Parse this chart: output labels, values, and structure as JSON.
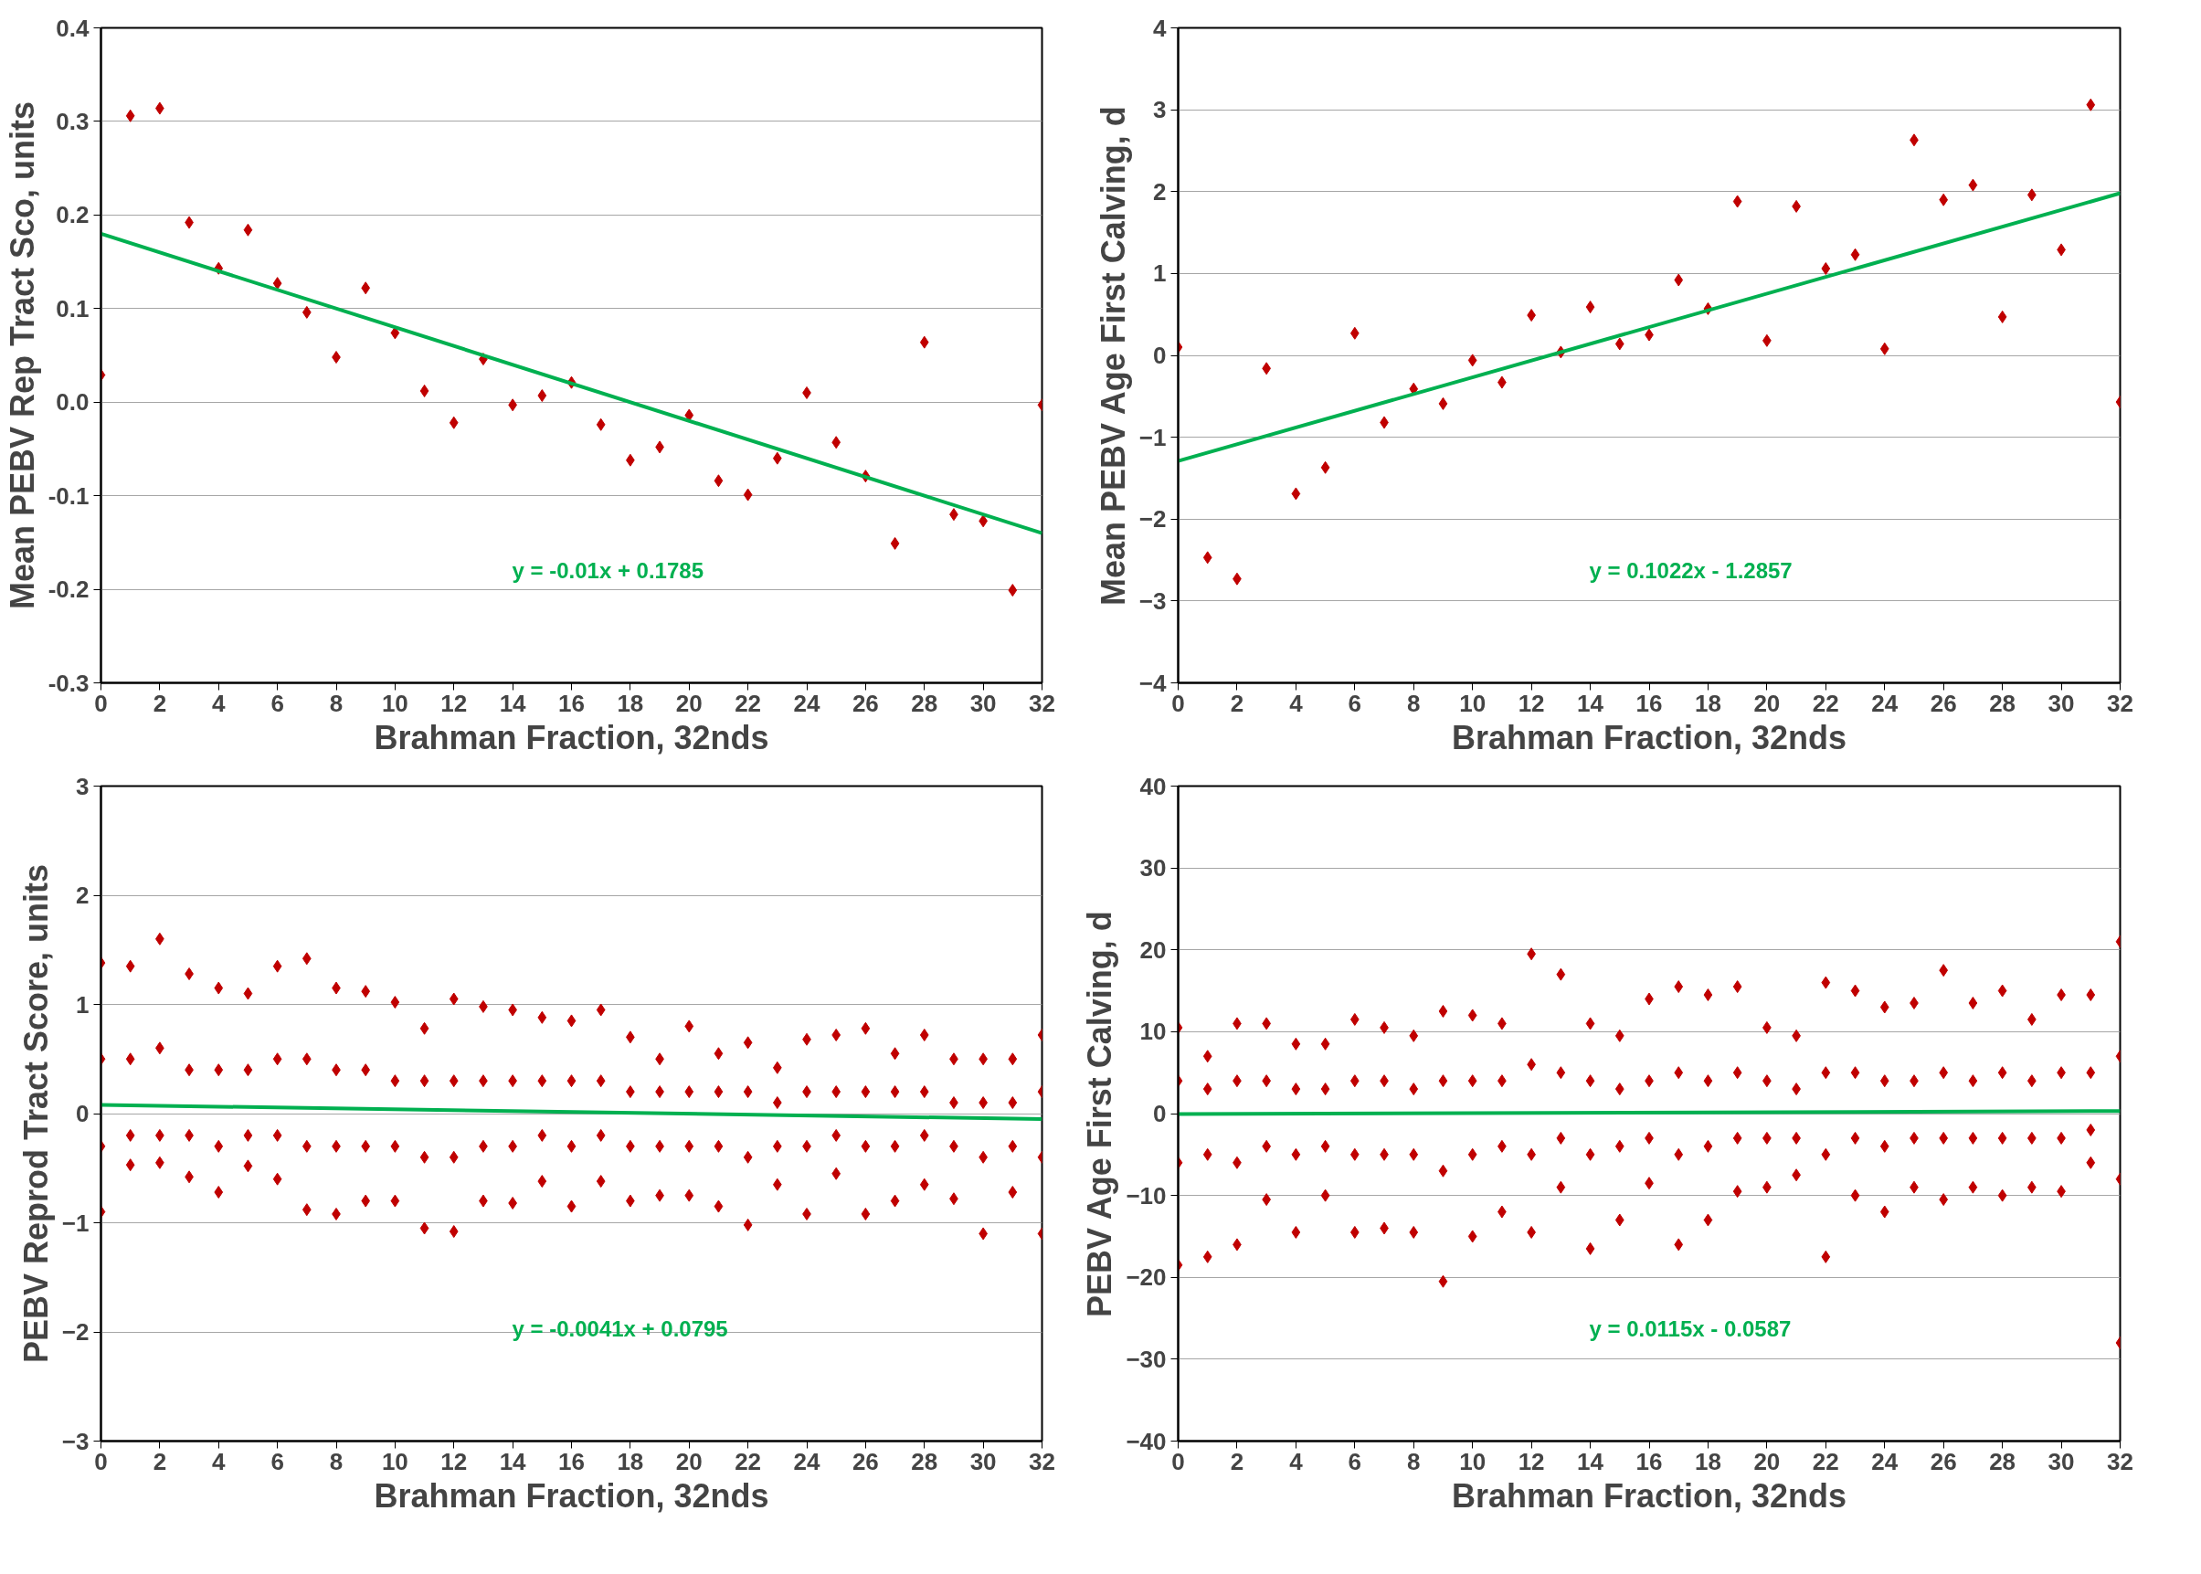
{
  "chart_data": [
    {
      "type": "scatter",
      "xlabel": "Brahman Fraction, 32nds",
      "ylabel": "Mean PEBV Rep Tract Sco, units",
      "xlim": [
        0,
        32
      ],
      "xticks": [
        0,
        2,
        4,
        6,
        8,
        10,
        12,
        14,
        16,
        18,
        20,
        22,
        24,
        26,
        28,
        30,
        32
      ],
      "ylim": [
        -0.3,
        0.4
      ],
      "yticks": [
        {
          "value": -0.3,
          "label": "-0.3"
        },
        {
          "value": -0.2,
          "label": "-0.2"
        },
        {
          "value": -0.1,
          "label": "-0.1"
        },
        {
          "value": 0,
          "label": "0.0"
        },
        {
          "value": 0.1,
          "label": "0.1"
        },
        {
          "value": 0.2,
          "label": "0.2"
        },
        {
          "value": 0.3,
          "label": "0.3"
        },
        {
          "value": 0.4,
          "label": "0.4"
        }
      ],
      "grid": "y",
      "series": [
        {
          "marker": "diamond",
          "color": "#c00000",
          "x": [
            0,
            1,
            2,
            3,
            4,
            5,
            6,
            7,
            8,
            9,
            10,
            11,
            12,
            13,
            14,
            15,
            16,
            17,
            18,
            19,
            20,
            21,
            22,
            23,
            24,
            25,
            26,
            27,
            28,
            29,
            30,
            31,
            32
          ],
          "values": [
            0.029,
            0.306,
            0.314,
            0.192,
            0.143,
            0.184,
            0.127,
            0.096,
            0.048,
            0.122,
            0.074,
            0.012,
            -0.022,
            0.046,
            -0.003,
            0.007,
            0.021,
            -0.024,
            -0.062,
            -0.048,
            -0.014,
            -0.084,
            -0.099,
            -0.06,
            0.01,
            -0.043,
            -0.079,
            -0.151,
            0.064,
            -0.12,
            -0.127,
            -0.201,
            -0.003
          ]
        },
        {
          "type": "line",
          "color": "#00b050",
          "x": [
            0,
            32
          ],
          "values": [
            0.18,
            -0.14
          ]
        }
      ],
      "annotations": [
        "y = -0.01x + 0.1785"
      ]
    },
    {
      "type": "scatter",
      "xlabel": "Brahman Fraction, 32nds",
      "ylabel": "Mean PEBV Age First Calving, d",
      "xlim": [
        0,
        32
      ],
      "xticks": [
        0,
        2,
        4,
        6,
        8,
        10,
        12,
        14,
        16,
        18,
        20,
        22,
        24,
        26,
        28,
        30,
        32
      ],
      "ylim": [
        -4,
        4
      ],
      "yticks": [
        -4,
        -3,
        -2,
        -1,
        0,
        1,
        2,
        3,
        4
      ],
      "grid": "y",
      "series": [
        {
          "marker": "diamond",
          "color": "#c00000",
          "x": [
            0,
            1,
            2,
            3,
            4,
            5,
            6,
            7,
            8,
            9,
            10,
            11,
            12,
            13,
            14,
            15,
            16,
            17,
            18,
            19,
            20,
            21,
            22,
            23,
            24,
            25,
            26,
            27,
            28,
            29,
            30,
            31,
            32
          ],
          "values": [
            0.1,
            -2.47,
            -2.73,
            -0.16,
            -1.69,
            -1.37,
            0.27,
            -0.82,
            -0.41,
            -0.59,
            -0.06,
            -0.33,
            0.49,
            0.04,
            0.59,
            0.14,
            0.25,
            0.92,
            0.57,
            1.88,
            0.18,
            1.82,
            1.06,
            1.23,
            0.08,
            2.63,
            1.9,
            2.08,
            0.47,
            1.96,
            1.29,
            3.06,
            -0.57
          ]
        },
        {
          "type": "line",
          "color": "#00b050",
          "x": [
            0,
            32
          ],
          "values": [
            -1.29,
            1.98
          ]
        }
      ],
      "annotations": [
        "y = 0.1022x - 1.2857"
      ]
    },
    {
      "type": "scatter",
      "xlabel": "Brahman Fraction, 32nds",
      "ylabel": "PEBV Reprod Tract Score, units",
      "xlim": [
        0,
        32
      ],
      "xticks": [
        0,
        2,
        4,
        6,
        8,
        10,
        12,
        14,
        16,
        18,
        20,
        22,
        24,
        26,
        28,
        30,
        32
      ],
      "ylim": [
        -3,
        3
      ],
      "yticks": [
        -3,
        -2,
        -1,
        0,
        1,
        2,
        3
      ],
      "grid": "y",
      "series": [
        {
          "marker": "diamond",
          "color": "#c00000",
          "x": [
            0,
            0,
            0,
            0,
            1,
            1,
            1,
            1,
            2,
            2,
            2,
            2,
            3,
            3,
            3,
            3,
            4,
            4,
            4,
            4,
            5,
            5,
            5,
            5,
            6,
            6,
            6,
            6,
            7,
            7,
            7,
            7,
            8,
            8,
            8,
            8,
            9,
            9,
            9,
            9,
            10,
            10,
            10,
            10,
            11,
            11,
            11,
            11,
            12,
            12,
            12,
            12,
            13,
            13,
            13,
            13,
            14,
            14,
            14,
            14,
            15,
            15,
            15,
            15,
            16,
            16,
            16,
            16,
            17,
            17,
            17,
            17,
            18,
            18,
            18,
            18,
            19,
            19,
            19,
            19,
            20,
            20,
            20,
            20,
            21,
            21,
            21,
            21,
            22,
            22,
            22,
            22,
            23,
            23,
            23,
            23,
            24,
            24,
            24,
            24,
            25,
            25,
            25,
            25,
            26,
            26,
            26,
            26,
            27,
            27,
            27,
            27,
            28,
            28,
            28,
            28,
            29,
            29,
            29,
            29,
            30,
            30,
            30,
            30,
            31,
            31,
            31,
            31,
            32,
            32,
            32,
            32
          ],
          "values": [
            1.38,
            0.5,
            -0.3,
            -0.9,
            1.35,
            0.5,
            -0.2,
            -0.47,
            1.6,
            0.6,
            -0.2,
            -0.45,
            1.28,
            0.4,
            -0.2,
            -0.58,
            1.15,
            0.4,
            -0.3,
            -0.72,
            1.1,
            0.4,
            -0.2,
            -0.48,
            1.35,
            0.5,
            -0.2,
            -0.6,
            1.42,
            0.5,
            -0.3,
            -0.88,
            1.15,
            0.4,
            -0.3,
            -0.92,
            1.12,
            0.4,
            -0.3,
            -0.8,
            1.02,
            0.3,
            -0.3,
            -0.8,
            0.78,
            0.3,
            -0.4,
            -1.05,
            1.05,
            0.3,
            -0.4,
            -1.08,
            0.98,
            0.3,
            -0.3,
            -0.8,
            0.95,
            0.3,
            -0.3,
            -0.82,
            0.88,
            0.3,
            -0.2,
            -0.62,
            0.85,
            0.3,
            -0.3,
            -0.85,
            0.95,
            0.3,
            -0.2,
            -0.62,
            0.7,
            0.2,
            -0.3,
            -0.8,
            0.5,
            0.2,
            -0.3,
            -0.75,
            0.8,
            0.2,
            -0.3,
            -0.75,
            0.55,
            0.2,
            -0.3,
            -0.85,
            0.65,
            0.2,
            -0.4,
            -1.02,
            0.42,
            0.1,
            -0.3,
            -0.65,
            0.68,
            0.2,
            -0.3,
            -0.92,
            0.72,
            0.2,
            -0.2,
            -0.55,
            0.78,
            0.2,
            -0.3,
            -0.92,
            0.55,
            0.2,
            -0.3,
            -0.8,
            0.72,
            0.2,
            -0.2,
            -0.65,
            0.5,
            0.1,
            -0.3,
            -0.78,
            0.5,
            0.1,
            -0.4,
            -1.1,
            0.5,
            0.1,
            -0.3,
            -0.72,
            0.72,
            0.2,
            -0.4,
            -1.1
          ]
        },
        {
          "type": "line",
          "color": "#00b050",
          "x": [
            0,
            32
          ],
          "values": [
            0.08,
            -0.05
          ]
        }
      ],
      "annotations": [
        "y = -0.0041x + 0.0795"
      ]
    },
    {
      "type": "scatter",
      "xlabel": "Brahman Fraction, 32nds",
      "ylabel": "PEBV Age First Calving, d",
      "xlim": [
        0,
        32
      ],
      "xticks": [
        0,
        2,
        4,
        6,
        8,
        10,
        12,
        14,
        16,
        18,
        20,
        22,
        24,
        26,
        28,
        30,
        32
      ],
      "ylim": [
        -40,
        40
      ],
      "yticks": [
        -40,
        -30,
        -20,
        -10,
        0,
        10,
        20,
        30,
        40
      ],
      "grid": "y",
      "series": [
        {
          "marker": "diamond",
          "color": "#c00000",
          "x": [
            0,
            0,
            0,
            0,
            1,
            1,
            1,
            1,
            2,
            2,
            2,
            2,
            3,
            3,
            3,
            3,
            4,
            4,
            4,
            4,
            5,
            5,
            5,
            5,
            6,
            6,
            6,
            6,
            7,
            7,
            7,
            7,
            8,
            8,
            8,
            8,
            9,
            9,
            9,
            9,
            10,
            10,
            10,
            10,
            11,
            11,
            11,
            11,
            12,
            12,
            12,
            12,
            13,
            13,
            13,
            13,
            14,
            14,
            14,
            14,
            15,
            15,
            15,
            15,
            16,
            16,
            16,
            16,
            17,
            17,
            17,
            17,
            18,
            18,
            18,
            18,
            19,
            19,
            19,
            19,
            20,
            20,
            20,
            20,
            21,
            21,
            21,
            21,
            22,
            22,
            22,
            22,
            23,
            23,
            23,
            23,
            24,
            24,
            24,
            24,
            25,
            25,
            25,
            25,
            26,
            26,
            26,
            26,
            27,
            27,
            27,
            27,
            28,
            28,
            28,
            28,
            29,
            29,
            29,
            29,
            30,
            30,
            30,
            30,
            31,
            31,
            31,
            31,
            32,
            32,
            32,
            32
          ],
          "values": [
            10.5,
            4,
            -6,
            -18.5,
            7,
            3,
            -5,
            -17.5,
            11,
            4,
            -6,
            -16,
            11,
            4,
            -4,
            -10.5,
            8.5,
            3,
            -5,
            -14.5,
            8.5,
            3,
            -4,
            -10,
            11.5,
            4,
            -5,
            -14.5,
            10.5,
            4,
            -5,
            -14,
            9.5,
            3,
            -5,
            -14.5,
            12.5,
            4,
            -7,
            -20.5,
            12,
            4,
            -5,
            -15,
            11,
            4,
            -4,
            -12,
            19.5,
            6,
            -5,
            -14.5,
            17,
            5,
            -3,
            -9,
            11,
            4,
            -5,
            -16.5,
            9.5,
            3,
            -4,
            -13,
            14,
            4,
            -3,
            -8.5,
            15.5,
            5,
            -5,
            -16,
            14.5,
            4,
            -4,
            -13,
            15.5,
            5,
            -3,
            -9.5,
            10.5,
            4,
            -3,
            -9,
            9.5,
            3,
            -3,
            -7.5,
            16,
            5,
            -5,
            -17.5,
            15,
            5,
            -3,
            -10,
            13,
            4,
            -4,
            -12,
            13.5,
            4,
            -3,
            -9,
            17.5,
            5,
            -3,
            -10.5,
            13.5,
            4,
            -3,
            -9,
            15,
            5,
            -3,
            -10,
            11.5,
            4,
            -3,
            -9,
            14.5,
            5,
            -3,
            -9.5,
            14.5,
            5,
            -2,
            -6,
            21,
            7,
            -8,
            -28
          ]
        },
        {
          "type": "line",
          "color": "#00b050",
          "x": [
            0,
            32
          ],
          "values": [
            -0.06,
            0.31
          ]
        }
      ],
      "annotations": [
        "y = 0.0115x - 0.0587"
      ]
    }
  ]
}
